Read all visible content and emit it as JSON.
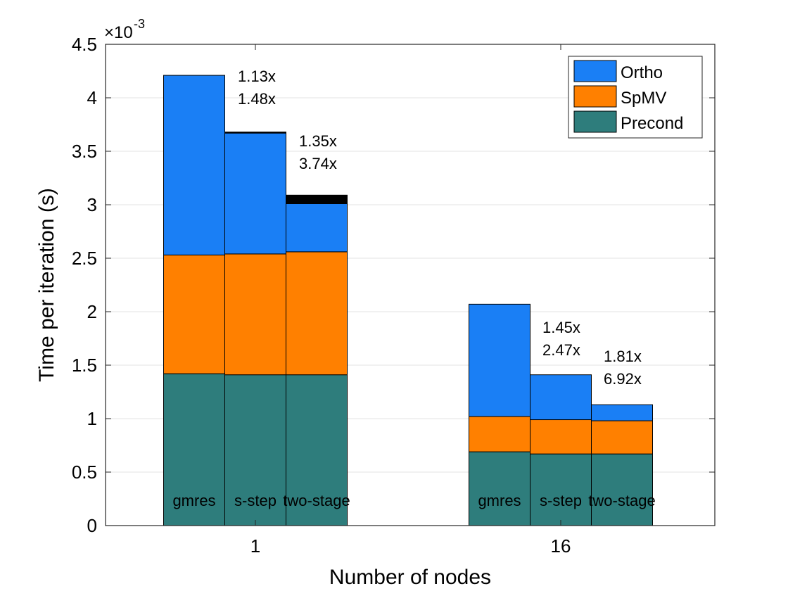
{
  "chart_data": {
    "type": "bar",
    "stacked": true,
    "grouped": true,
    "title": "",
    "xlabel": "Number of nodes",
    "ylabel": "Time per iteration (s)",
    "y_exponent_label": "×10",
    "y_exponent": "-3",
    "ylim": [
      0,
      4.5
    ],
    "ytick_labels": [
      "0",
      "0.5",
      "1",
      "1.5",
      "2",
      "2.5",
      "3",
      "3.5",
      "4",
      "4.5"
    ],
    "yticks": [
      0,
      0.5,
      1,
      1.5,
      2,
      2.5,
      3,
      3.5,
      4,
      4.5
    ],
    "grid": true,
    "legend_position": "top-right",
    "groups": [
      {
        "name": "1",
        "bars": [
          {
            "label": "gmres",
            "precond": 1.42,
            "spmv": 1.11,
            "ortho": 1.68,
            "extra": 0,
            "annotation": []
          },
          {
            "label": "s-step",
            "precond": 1.41,
            "spmv": 1.13,
            "ortho": 1.13,
            "extra": 0.01,
            "annotation": [
              "1.13x",
              "1.48x"
            ]
          },
          {
            "label": "two-stage",
            "precond": 1.41,
            "spmv": 1.15,
            "ortho": 0.45,
            "extra": 0.08,
            "annotation": [
              "1.35x",
              "3.74x"
            ]
          }
        ]
      },
      {
        "name": "16",
        "bars": [
          {
            "label": "gmres",
            "precond": 0.69,
            "spmv": 0.33,
            "ortho": 1.05,
            "extra": 0,
            "annotation": []
          },
          {
            "label": "s-step",
            "precond": 0.67,
            "spmv": 0.32,
            "ortho": 0.42,
            "extra": 0,
            "annotation": [
              "1.45x",
              "2.47x"
            ]
          },
          {
            "label": "two-stage",
            "precond": 0.67,
            "spmv": 0.31,
            "ortho": 0.15,
            "extra": 0,
            "annotation": [
              "1.81x",
              "6.92x"
            ]
          }
        ]
      }
    ],
    "series": [
      {
        "name": "Ortho",
        "key": "ortho",
        "color": "#1a7ff5"
      },
      {
        "name": "SpMV",
        "key": "spmv",
        "color": "#ff8000"
      },
      {
        "name": "Precond",
        "key": "precond",
        "color": "#2e7d7c"
      }
    ],
    "extra_color": "#000000"
  }
}
